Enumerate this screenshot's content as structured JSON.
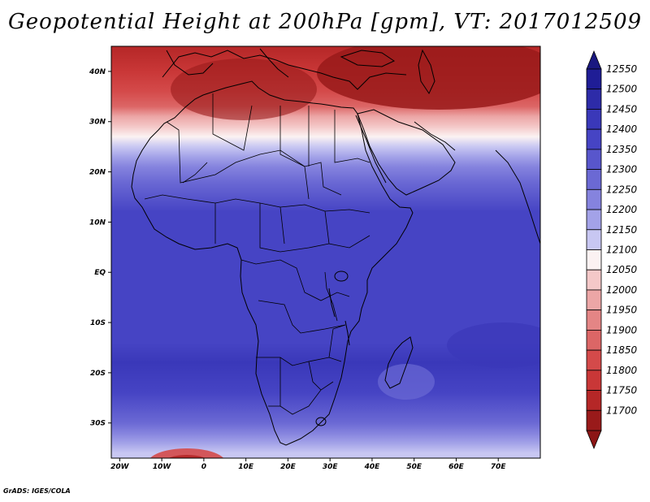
{
  "title": "Geopotential Height at 200hPa [gpm], VT: 2017012509",
  "credit": "GrADS: IGES/COLA",
  "map": {
    "region": "Africa",
    "lon_range": [
      -22,
      80
    ],
    "lat_range": [
      -37,
      45
    ],
    "variable": "Geopotential Height",
    "level": "200hPa",
    "units": "gpm",
    "valid_time": "2017012509",
    "lat_ticks": [
      {
        "lat": 40,
        "label": "40N"
      },
      {
        "lat": 30,
        "label": "30N"
      },
      {
        "lat": 20,
        "label": "20N"
      },
      {
        "lat": 10,
        "label": "10N"
      },
      {
        "lat": 0,
        "label": "EQ"
      },
      {
        "lat": -10,
        "label": "10S"
      },
      {
        "lat": -20,
        "label": "20S"
      },
      {
        "lat": -30,
        "label": "30S"
      }
    ],
    "lon_ticks": [
      {
        "lon": -20,
        "label": "20W"
      },
      {
        "lon": -10,
        "label": "10W"
      },
      {
        "lon": 0,
        "label": "0"
      },
      {
        "lon": 10,
        "label": "10E"
      },
      {
        "lon": 20,
        "label": "20E"
      },
      {
        "lon": 30,
        "label": "30E"
      },
      {
        "lon": 40,
        "label": "40E"
      },
      {
        "lon": 50,
        "label": "50E"
      },
      {
        "lon": 60,
        "label": "60E"
      },
      {
        "lon": 70,
        "label": "70E"
      }
    ]
  },
  "colorbar": {
    "levels": [
      {
        "value": "12550",
        "color": "#1f1d96"
      },
      {
        "value": "12500",
        "color": "#2d2ba8"
      },
      {
        "value": "12450",
        "color": "#3a38b9"
      },
      {
        "value": "12400",
        "color": "#4644c4"
      },
      {
        "value": "12350",
        "color": "#5856cc"
      },
      {
        "value": "12300",
        "color": "#6b69d4"
      },
      {
        "value": "12250",
        "color": "#8583de"
      },
      {
        "value": "12200",
        "color": "#a3a2e8"
      },
      {
        "value": "12150",
        "color": "#c8c7f2"
      },
      {
        "value": "12100",
        "color": "#fbf2f2"
      },
      {
        "value": "12050",
        "color": "#f4c8c8"
      },
      {
        "value": "12000",
        "color": "#eca6a6"
      },
      {
        "value": "11950",
        "color": "#e48585"
      },
      {
        "value": "11900",
        "color": "#dc6666"
      },
      {
        "value": "11850",
        "color": "#d44a4a"
      },
      {
        "value": "11800",
        "color": "#c93737"
      },
      {
        "value": "11750",
        "color": "#b52727"
      },
      {
        "value": "11700",
        "color": "#991a1a"
      }
    ],
    "max_arrow_color": "#1a1880",
    "min_arrow_color": "#8c1515"
  },
  "field_bands": [
    {
      "lat": 45,
      "color": "#b52727"
    },
    {
      "lat": 40,
      "color": "#c93737"
    },
    {
      "lat": 36,
      "color": "#d44a4a"
    },
    {
      "lat": 33,
      "color": "#dc6666"
    },
    {
      "lat": 31,
      "color": "#eca6a6"
    },
    {
      "lat": 29,
      "color": "#f4c8c8"
    },
    {
      "lat": 27,
      "color": "#fbf2f2"
    },
    {
      "lat": 25,
      "color": "#c8c7f2"
    },
    {
      "lat": 23,
      "color": "#a3a2e8"
    },
    {
      "lat": 21,
      "color": "#8583de"
    },
    {
      "lat": 18,
      "color": "#6b69d4"
    },
    {
      "lat": 15,
      "color": "#5856cc"
    },
    {
      "lat": 12,
      "color": "#4644c4"
    },
    {
      "lat": -14,
      "color": "#4644c4"
    },
    {
      "lat": -18,
      "color": "#3a38b9"
    },
    {
      "lat": -24,
      "color": "#4644c4"
    },
    {
      "lat": -27,
      "color": "#5856cc"
    },
    {
      "lat": -30,
      "color": "#6b69d4"
    },
    {
      "lat": -32,
      "color": "#8583de"
    },
    {
      "lat": -34,
      "color": "#a3a2e8"
    },
    {
      "lat": -36,
      "color": "#c8c7f2"
    },
    {
      "lat": -37,
      "color": "#c8c7f2"
    }
  ]
}
